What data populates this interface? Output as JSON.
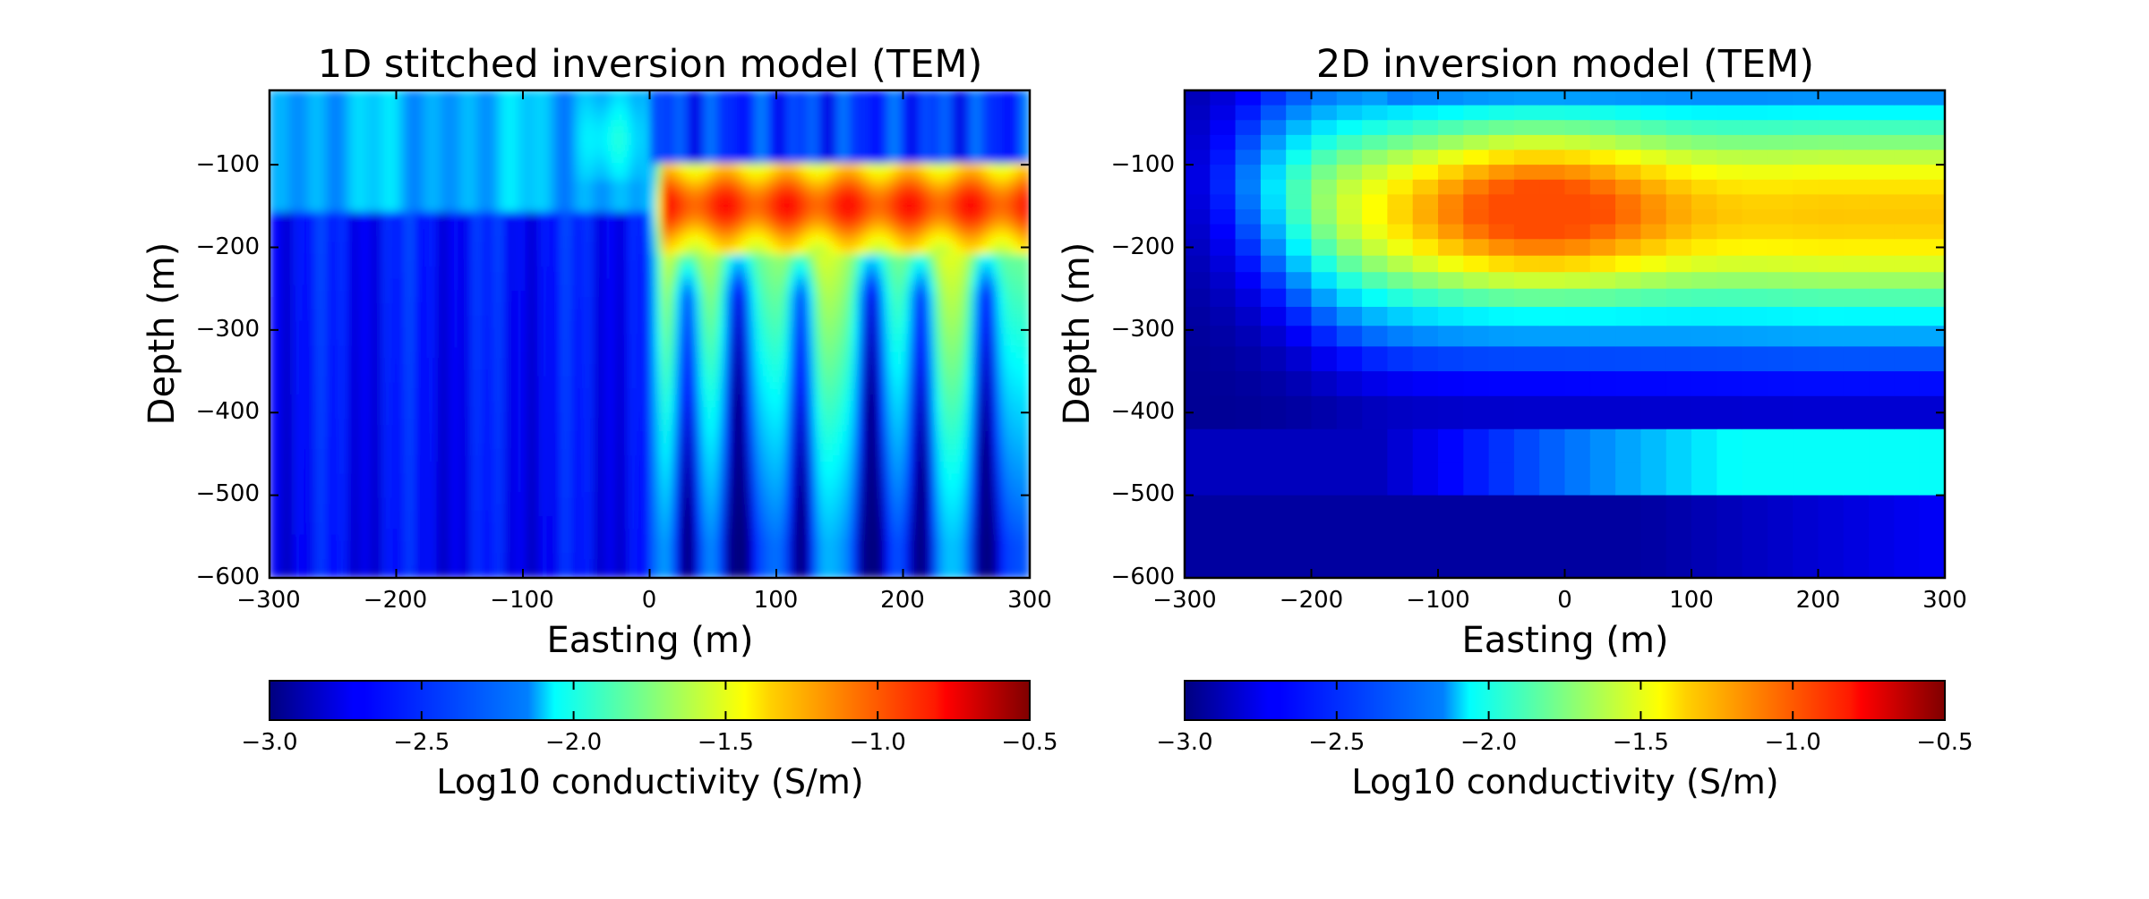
{
  "chart_data": [
    {
      "type": "heatmap",
      "title": "1D stitched inversion model (TEM)",
      "xlabel": "Easting (m)",
      "ylabel": "Depth (m)",
      "xlim": [
        -300,
        300
      ],
      "ylim": [
        -600,
        -10
      ],
      "xticks": [
        "−300",
        "−200",
        "−100",
        "0",
        "100",
        "200",
        "300"
      ],
      "yticks": [
        "−100",
        "−200",
        "−300",
        "−400",
        "−500",
        "−600"
      ],
      "colormap": "jet",
      "colorbar": {
        "label": "Log10 conductivity (S/m)",
        "range": [
          -3.0,
          -0.5
        ],
        "ticks": [
          "−3.0",
          "−2.5",
          "−2.0",
          "−1.5",
          "−1.0",
          "−0.5"
        ],
        "placement": "bottom"
      },
      "style": "smooth-contour",
      "zones": [
        {
          "x": [
            -300,
            0
          ],
          "z": [
            -10,
            -160
          ],
          "value": -2.3
        },
        {
          "x": [
            -300,
            0
          ],
          "z": [
            -160,
            -600
          ],
          "value": -2.7
        },
        {
          "x": [
            0,
            300
          ],
          "z": [
            -10,
            -90
          ],
          "value": -2.8
        },
        {
          "x": [
            0,
            300
          ],
          "z": [
            -100,
            -200
          ],
          "value": -1.0
        },
        {
          "x": [
            0,
            300
          ],
          "z": [
            -200,
            -600
          ],
          "value": -1.9
        }
      ]
    },
    {
      "type": "heatmap",
      "title": "2D inversion model (TEM)",
      "xlabel": "Easting (m)",
      "ylabel": "Depth (m)",
      "xlim": [
        -300,
        300
      ],
      "ylim": [
        -600,
        -10
      ],
      "xticks": [
        "−300",
        "−200",
        "−100",
        "0",
        "100",
        "200",
        "300"
      ],
      "yticks": [
        "−100",
        "−200",
        "−300",
        "−400",
        "−500",
        "−600"
      ],
      "colormap": "jet",
      "colorbar": {
        "label": "Log10 conductivity (S/m)",
        "range": [
          -3.0,
          -0.5
        ],
        "ticks": [
          "−3.0",
          "−2.5",
          "−2.0",
          "−1.5",
          "−1.0",
          "−0.5"
        ],
        "placement": "bottom"
      },
      "style": "blocky-cells",
      "anomaly": {
        "center_x": -20,
        "center_z": -150,
        "peak_value": -1.05
      },
      "zones": [
        {
          "x": [
            -300,
            300
          ],
          "z": [
            -500,
            -600
          ],
          "value": -2.9
        },
        {
          "x": [
            -100,
            300
          ],
          "z": [
            -80,
            -320
          ],
          "value": -1.2
        }
      ]
    }
  ]
}
